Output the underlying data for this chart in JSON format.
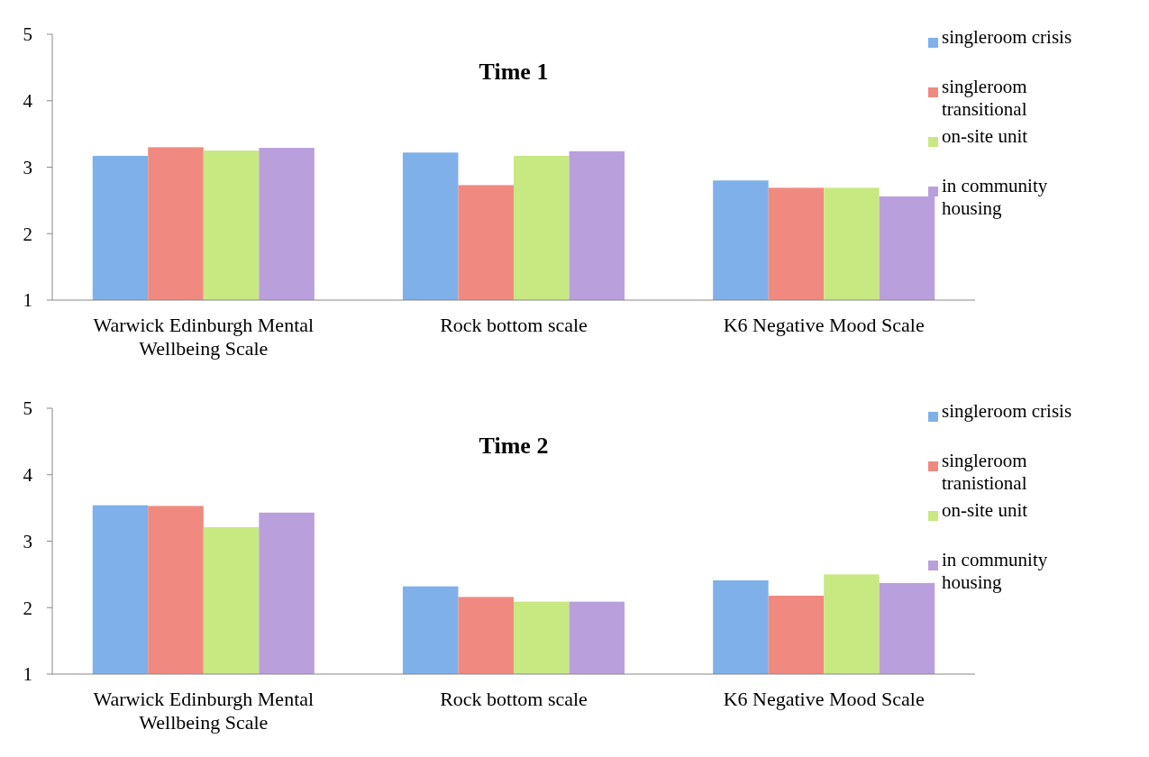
{
  "chart_data": [
    {
      "type": "bar",
      "title": "Time 1",
      "categories": [
        "Warwick Edinburgh Mental Wellbeing Scale",
        "Rock bottom scale",
        "K6 Negative Mood Scale"
      ],
      "ylim": [
        1,
        5
      ],
      "yticks": [
        1,
        2,
        3,
        4,
        5
      ],
      "grid": false,
      "legend": "right",
      "series": [
        {
          "name": "singleroom crisis",
          "color": "#7fb0ea",
          "values": [
            3.17,
            3.22,
            2.8
          ]
        },
        {
          "name": "singleroom transitional",
          "color": "#f08a80",
          "values": [
            3.3,
            2.73,
            2.69
          ]
        },
        {
          "name": "on-site unit",
          "color": "#c8e882",
          "values": [
            3.25,
            3.17,
            2.69
          ]
        },
        {
          "name": "in community housing",
          "color": "#b9a0dc",
          "values": [
            3.29,
            3.24,
            2.56
          ]
        }
      ]
    },
    {
      "type": "bar",
      "title": "Time 2",
      "categories": [
        "Warwick Edinburgh Mental Wellbeing Scale",
        "Rock bottom scale",
        "K6 Negative Mood Scale"
      ],
      "ylim": [
        1,
        5
      ],
      "yticks": [
        1,
        2,
        3,
        4,
        5
      ],
      "grid": false,
      "legend": "right",
      "series": [
        {
          "name": "singleroom crisis",
          "color": "#7fb0ea",
          "values": [
            3.54,
            2.32,
            2.41
          ]
        },
        {
          "name": "singleroom tranistional",
          "color": "#f08a80",
          "values": [
            3.53,
            2.16,
            2.18
          ]
        },
        {
          "name": "on-site unit",
          "color": "#c8e882",
          "values": [
            3.21,
            2.09,
            2.5
          ]
        },
        {
          "name": "in community housing",
          "color": "#b9a0dc",
          "values": [
            3.43,
            2.09,
            2.37
          ]
        }
      ]
    }
  ]
}
